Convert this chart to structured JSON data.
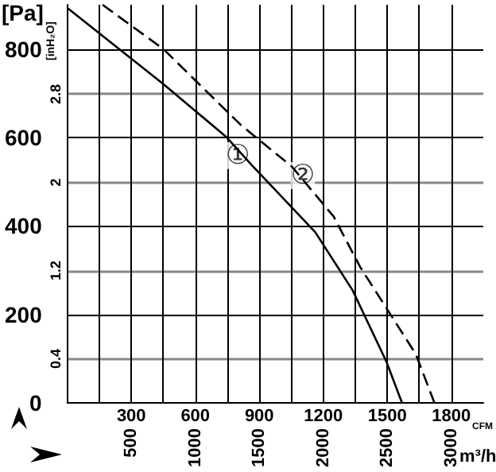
{
  "chart_data": {
    "type": "line",
    "ylabel": "[Pa]",
    "y2label": "[inH₂O]",
    "xlabel": "CFM",
    "x2label": "m³/h",
    "xlim": [
      0,
      1950
    ],
    "xticks": [
      {
        "value": 150,
        "label": null
      },
      300,
      {
        "value": 450,
        "label": null
      },
      600,
      {
        "value": 750,
        "label": null
      },
      900,
      {
        "value": 1050,
        "label": null
      },
      1200,
      {
        "value": 1350,
        "label": null
      },
      1500,
      {
        "value": 1650,
        "label": null
      },
      1800
    ],
    "x2lim": [
      0,
      3250
    ],
    "x2ticks": [
      500,
      1000,
      1500,
      2000,
      2500,
      3000
    ],
    "ylim": [
      0,
      900
    ],
    "yticks": [
      0,
      200,
      400,
      600,
      800
    ],
    "y2lim": [
      0,
      3.61
    ],
    "y2ticks": [
      0.4,
      1.2,
      2.0,
      2.8
    ],
    "grid": true,
    "marker": "none",
    "series": [
      {
        "color": "#000000",
        "line_style": "solid",
        "x": [
          0,
          450,
          748,
          864,
          1162,
          1337,
          1496,
          1569
        ],
        "values": [
          893,
          721,
          600,
          538,
          386,
          255,
          93,
          0
        ]
      },
      {
        "color": "#000000",
        "line_style": "dashed",
        "x": [
          165,
          450,
          814,
          1053,
          1249,
          1373,
          1634,
          1721
        ],
        "values": [
          900,
          800,
          628,
          534,
          421,
          307,
          110,
          0
        ]
      }
    ],
    "annotations": [
      {
        "text": "①",
        "x": 799,
        "y": 559
      },
      {
        "text": "②",
        "x": 1104,
        "y": 514
      }
    ]
  }
}
